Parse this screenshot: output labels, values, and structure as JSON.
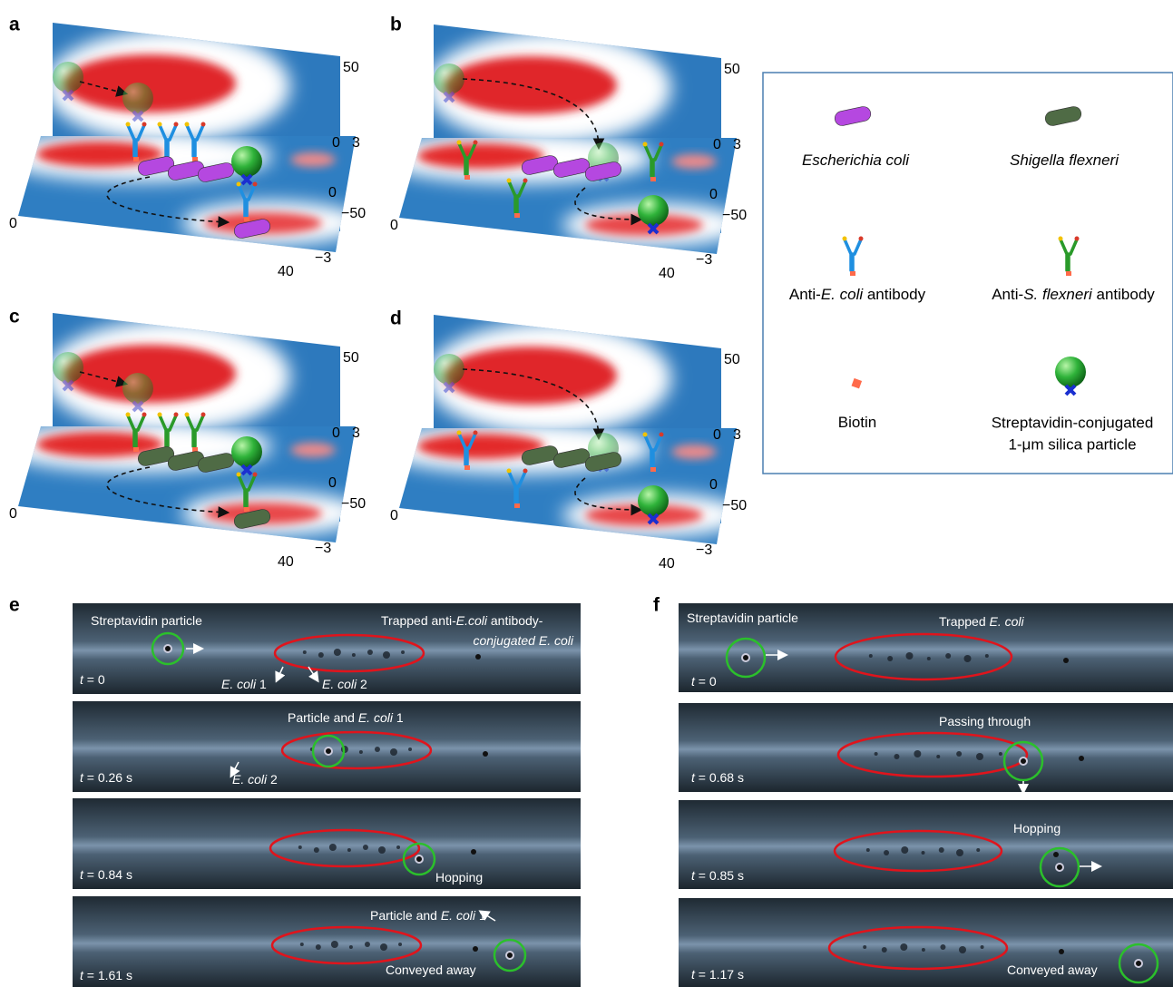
{
  "panels_3d": [
    {
      "label": "a",
      "axis_labels": [
        "50",
        "0",
        "3",
        "0",
        "−50",
        "−3",
        "0",
        "40"
      ]
    },
    {
      "label": "b",
      "axis_labels": [
        "50",
        "0",
        "3",
        "0",
        "−50",
        "−3",
        "0",
        "40"
      ]
    },
    {
      "label": "c",
      "axis_labels": [
        "50",
        "0",
        "3",
        "0",
        "−50",
        "−3",
        "0",
        "40"
      ]
    },
    {
      "label": "d",
      "axis_labels": [
        "50",
        "0",
        "3",
        "0",
        "−50",
        "−3",
        "0",
        "40"
      ]
    }
  ],
  "legend": {
    "items": [
      {
        "parts": [
          {
            "text": "Escherichia coli",
            "italic": true
          }
        ]
      },
      {
        "parts": [
          {
            "text": "Shigella flexneri",
            "italic": true
          }
        ]
      },
      {
        "parts": [
          {
            "text": "Anti-"
          },
          {
            "text": "E. coli",
            "italic": true
          },
          {
            "text": " antibody"
          }
        ]
      },
      {
        "parts": [
          {
            "text": "Anti-"
          },
          {
            "text": "S. flexneri",
            "italic": true
          },
          {
            "text": " antibody"
          }
        ]
      },
      {
        "parts": [
          {
            "text": "Biotin"
          }
        ]
      },
      {
        "lines": [
          "Streptavidin-conjugated",
          "1-μm silica particle"
        ]
      }
    ]
  },
  "panel_e": {
    "label": "e",
    "frames": [
      {
        "time": [
          {
            "text": "t",
            "italic": true
          },
          {
            "text": " = 0"
          }
        ],
        "annotations": [
          {
            "parts": [
              {
                "text": "Streptavidin particle"
              }
            ]
          },
          {
            "parts": [
              {
                "text": "Trapped anti-"
              },
              {
                "text": "E.coli",
                "italic": true
              },
              {
                "text": " antibody-"
              }
            ]
          },
          {
            "parts": [
              {
                "text": "conjugated E. coli",
                "italic": true
              }
            ]
          },
          {
            "parts": [
              {
                "text": "E. coli",
                "italic": true
              },
              {
                "text": " 1"
              }
            ]
          },
          {
            "parts": [
              {
                "text": "E. coli",
                "italic": true
              },
              {
                "text": " 2"
              }
            ]
          }
        ]
      },
      {
        "time": [
          {
            "text": "t",
            "italic": true
          },
          {
            "text": " = 0.26 s"
          }
        ],
        "annotations": [
          {
            "parts": [
              {
                "text": "Particle and "
              },
              {
                "text": "E. coli",
                "italic": true
              },
              {
                "text": " 1"
              }
            ]
          },
          {
            "parts": [
              {
                "text": "E. coli",
                "italic": true
              },
              {
                "text": " 2"
              }
            ]
          }
        ]
      },
      {
        "time": [
          {
            "text": "t",
            "italic": true
          },
          {
            "text": " = 0.84 s"
          }
        ],
        "annotations": [
          {
            "parts": [
              {
                "text": "Hopping"
              }
            ]
          }
        ]
      },
      {
        "time": [
          {
            "text": "t",
            "italic": true
          },
          {
            "text": " = 1.61 s"
          }
        ],
        "annotations": [
          {
            "parts": [
              {
                "text": "Particle and "
              },
              {
                "text": "E. coli",
                "italic": true
              },
              {
                "text": " 1"
              }
            ]
          },
          {
            "parts": [
              {
                "text": "Conveyed away"
              }
            ]
          }
        ]
      }
    ]
  },
  "panel_f": {
    "label": "f",
    "frames": [
      {
        "time": [
          {
            "text": "t",
            "italic": true
          },
          {
            "text": " = 0"
          }
        ],
        "annotations": [
          {
            "parts": [
              {
                "text": "Streptavidin particle"
              }
            ]
          },
          {
            "parts": [
              {
                "text": "Trapped "
              },
              {
                "text": "E. coli",
                "italic": true
              }
            ]
          }
        ]
      },
      {
        "time": [
          {
            "text": "t",
            "italic": true
          },
          {
            "text": " = 0.68 s"
          }
        ],
        "annotations": [
          {
            "parts": [
              {
                "text": "Passing through"
              }
            ]
          }
        ]
      },
      {
        "time": [
          {
            "text": "t",
            "italic": true
          },
          {
            "text": " = 0.85 s"
          }
        ],
        "annotations": [
          {
            "parts": [
              {
                "text": "Hopping"
              }
            ]
          }
        ]
      },
      {
        "time": [
          {
            "text": "t",
            "italic": true
          },
          {
            "text": " = 1.17 s"
          }
        ],
        "annotations": [
          {
            "parts": [
              {
                "text": "Conveyed away"
              }
            ]
          }
        ]
      }
    ]
  }
}
